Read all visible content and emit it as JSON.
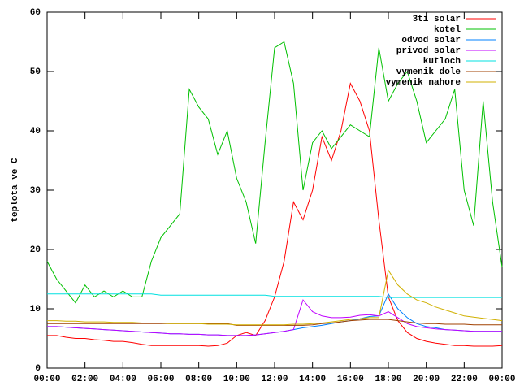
{
  "chart_data": {
    "type": "line",
    "ylabel": "teplota ve C",
    "xlim": [
      0,
      24
    ],
    "ylim": [
      0,
      60
    ],
    "yticks": [
      0,
      10,
      20,
      30,
      40,
      50,
      60
    ],
    "xticks": [
      {
        "value": 0,
        "label": "00:00"
      },
      {
        "value": 2,
        "label": "02:00"
      },
      {
        "value": 4,
        "label": "04:00"
      },
      {
        "value": 6,
        "label": "06:00"
      },
      {
        "value": 8,
        "label": "08:00"
      },
      {
        "value": 10,
        "label": "10:00"
      },
      {
        "value": 12,
        "label": "12:00"
      },
      {
        "value": 14,
        "label": "14:00"
      },
      {
        "value": 16,
        "label": "16:00"
      },
      {
        "value": 18,
        "label": "18:00"
      },
      {
        "value": 20,
        "label": "20:00"
      },
      {
        "value": 22,
        "label": "22:00"
      },
      {
        "value": 24,
        "label": "00:00"
      }
    ],
    "legend": "upper right",
    "x": [
      0,
      0.5,
      1,
      1.5,
      2,
      2.5,
      3,
      3.5,
      4,
      4.5,
      5,
      5.5,
      6,
      6.5,
      7,
      7.5,
      8,
      8.5,
      9,
      9.5,
      10,
      10.5,
      11,
      11.5,
      12,
      12.5,
      13,
      13.5,
      14,
      14.5,
      15,
      15.5,
      16,
      16.5,
      17,
      17.5,
      18,
      18.5,
      19,
      19.5,
      20,
      20.5,
      21,
      21.5,
      22,
      22.5,
      23,
      23.5,
      24
    ],
    "series": [
      {
        "name": "3ti solar",
        "color": "#ff0000",
        "values": [
          5.5,
          5.5,
          5.2,
          5,
          5,
          4.8,
          4.7,
          4.5,
          4.5,
          4.3,
          4,
          3.8,
          3.8,
          3.8,
          3.8,
          3.8,
          3.8,
          3.7,
          3.8,
          4.2,
          5.5,
          6,
          5.5,
          8,
          12,
          18,
          28,
          25,
          30,
          39,
          35,
          40,
          48,
          45,
          40,
          25,
          12,
          8,
          6,
          5,
          4.5,
          4.2,
          4,
          3.8,
          3.8,
          3.7,
          3.7,
          3.7,
          3.8
        ]
      },
      {
        "name": "kotel",
        "color": "#00c000",
        "values": [
          18,
          15,
          13,
          11,
          14,
          12,
          13,
          12,
          13,
          12,
          12,
          18,
          22,
          24,
          26,
          47,
          44,
          42,
          36,
          40,
          32,
          28,
          21,
          38,
          54,
          55,
          48,
          30,
          38,
          40,
          37,
          39,
          41,
          40,
          39,
          54,
          45,
          48,
          50,
          45,
          38,
          40,
          42,
          47,
          30,
          24,
          45,
          28,
          17
        ]
      },
      {
        "name": "odvod solar",
        "color": "#0080ff",
        "values": [
          7,
          7,
          6.9,
          6.8,
          6.7,
          6.6,
          6.5,
          6.4,
          6.3,
          6.2,
          6.1,
          6,
          5.9,
          5.8,
          5.8,
          5.7,
          5.7,
          5.6,
          5.6,
          5.5,
          5.5,
          5.5,
          5.6,
          5.8,
          6,
          6.2,
          6.5,
          6.8,
          7,
          7.2,
          7.5,
          7.8,
          8,
          8.3,
          8.7,
          8.8,
          12.5,
          10,
          8.5,
          7.5,
          7,
          6.8,
          6.5,
          6.4,
          6.3,
          6.2,
          6.2,
          6.2,
          6.2
        ]
      },
      {
        "name": "privod solar",
        "color": "#c000ff",
        "values": [
          7,
          7,
          6.9,
          6.8,
          6.7,
          6.6,
          6.5,
          6.4,
          6.3,
          6.2,
          6.1,
          6,
          5.9,
          5.8,
          5.8,
          5.7,
          5.7,
          5.6,
          5.6,
          5.5,
          5.5,
          5.5,
          5.6,
          5.8,
          6,
          6.2,
          6.5,
          11.5,
          9.5,
          8.8,
          8.5,
          8.5,
          8.6,
          8.9,
          9,
          8.8,
          9.5,
          8.5,
          7.5,
          7,
          6.8,
          6.6,
          6.5,
          6.4,
          6.3,
          6.2,
          6.2,
          6.2,
          6.2
        ]
      },
      {
        "name": "kutloch",
        "color": "#00e0e0",
        "values": [
          12.5,
          12.5,
          12.5,
          12.5,
          12.5,
          12.5,
          12.5,
          12.5,
          12.5,
          12.5,
          12.5,
          12.5,
          12.3,
          12.3,
          12.3,
          12.3,
          12.3,
          12.3,
          12.3,
          12.3,
          12.3,
          12.3,
          12.3,
          12.3,
          12.1,
          12.1,
          12.1,
          12.1,
          12.1,
          12.1,
          12.1,
          12.1,
          12.1,
          12.1,
          12.1,
          12.1,
          11.9,
          11.9,
          11.9,
          11.9,
          11.9,
          11.9,
          11.9,
          11.9,
          11.9,
          11.9,
          11.9,
          11.9,
          11.9
        ]
      },
      {
        "name": "vymenik dole",
        "color": "#a04000",
        "values": [
          7.5,
          7.5,
          7.5,
          7.5,
          7.5,
          7.5,
          7.5,
          7.5,
          7.5,
          7.5,
          7.5,
          7.5,
          7.5,
          7.5,
          7.5,
          7.5,
          7.5,
          7.5,
          7.5,
          7.5,
          7.2,
          7.2,
          7.2,
          7.2,
          7.2,
          7.2,
          7.2,
          7.2,
          7.3,
          7.5,
          7.6,
          7.8,
          8,
          8.1,
          8.2,
          8.2,
          8.2,
          8,
          7.8,
          7.6,
          7.5,
          7.5,
          7.4,
          7.4,
          7.4,
          7.3,
          7.3,
          7.3,
          7.3
        ]
      },
      {
        "name": "vymenik nahore",
        "color": "#d0b000",
        "values": [
          8,
          8,
          7.9,
          7.9,
          7.8,
          7.8,
          7.8,
          7.7,
          7.7,
          7.7,
          7.6,
          7.6,
          7.6,
          7.5,
          7.5,
          7.5,
          7.5,
          7.4,
          7.4,
          7.4,
          7.3,
          7.3,
          7.3,
          7.3,
          7.3,
          7.3,
          7.4,
          7.4,
          7.5,
          7.6,
          7.8,
          8,
          8.2,
          8.3,
          8.5,
          8.5,
          16.5,
          14,
          12.5,
          11.5,
          11,
          10.3,
          9.8,
          9.3,
          8.8,
          8.6,
          8.4,
          8.2,
          8
        ]
      }
    ]
  }
}
